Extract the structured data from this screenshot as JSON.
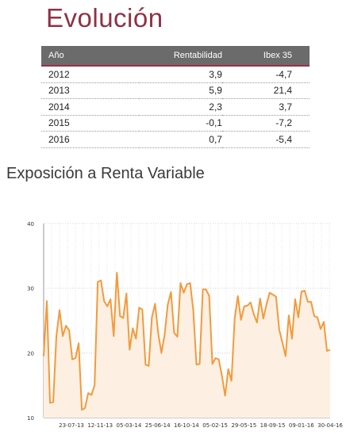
{
  "page": {
    "title": "Evolución",
    "subtitle": "Exposición a Renta Variable"
  },
  "table": {
    "headers": [
      "Año",
      "Rentabilidad",
      "Ibex 35"
    ],
    "rows": [
      [
        "2012",
        "3,9",
        "-4,7"
      ],
      [
        "2013",
        "5,9",
        "21,4"
      ],
      [
        "2014",
        "2,3",
        "3,7"
      ],
      [
        "2015",
        "-0,1",
        "-7,2"
      ],
      [
        "2016",
        "0,7",
        "-5,4"
      ]
    ]
  },
  "chart_data": {
    "type": "line",
    "title": "",
    "xlabel": "",
    "ylabel": "",
    "ylim": [
      10,
      40
    ],
    "yticks": [
      10,
      20,
      30,
      40
    ],
    "xticks": [
      "23-07-13",
      "12-11-13",
      "05-03-14",
      "25-06-14",
      "16-10-14",
      "05-02-15",
      "29-05-15",
      "18-09-15",
      "09-01-16",
      "30-04-16"
    ],
    "grid": true,
    "colors": {
      "line": "#f39a3b",
      "fill": "#fdf0e3",
      "grid": "#c8c8c8"
    },
    "series": [
      {
        "values": [
          19.5,
          28,
          12.3,
          12.4,
          22.6,
          26.6,
          22.6,
          24.2,
          23.5,
          19,
          19.2,
          21.5,
          11.2,
          11.5,
          13.8,
          13.5,
          15,
          31,
          31.2,
          28,
          27.2,
          28.3,
          22.6,
          32.4,
          25.7,
          25.4,
          29.2,
          20.5,
          23.8,
          22.2,
          27,
          26.7,
          18.2,
          18,
          25.5,
          27.6,
          23,
          20,
          22.8,
          27.5,
          29.4,
          23.1,
          22.5,
          30.8,
          29.3,
          30.6,
          30.8,
          26.6,
          18.2,
          18.3,
          29.8,
          29.8,
          28.8,
          18.3,
          19.2,
          19,
          16.5,
          13.4,
          17.5,
          15.7,
          25.3,
          28.8,
          25.1,
          27.2,
          27.3,
          27.8,
          26,
          24.7,
          28.4,
          25.3,
          27.5,
          29.3,
          29,
          28.7,
          23.6,
          21.6,
          19.5,
          25.8,
          22.2,
          28.3,
          25.5,
          29.5,
          29.6,
          27.9,
          27.9,
          25.7,
          25.5,
          23.7,
          24.8,
          20.3,
          20.5
        ]
      }
    ]
  }
}
